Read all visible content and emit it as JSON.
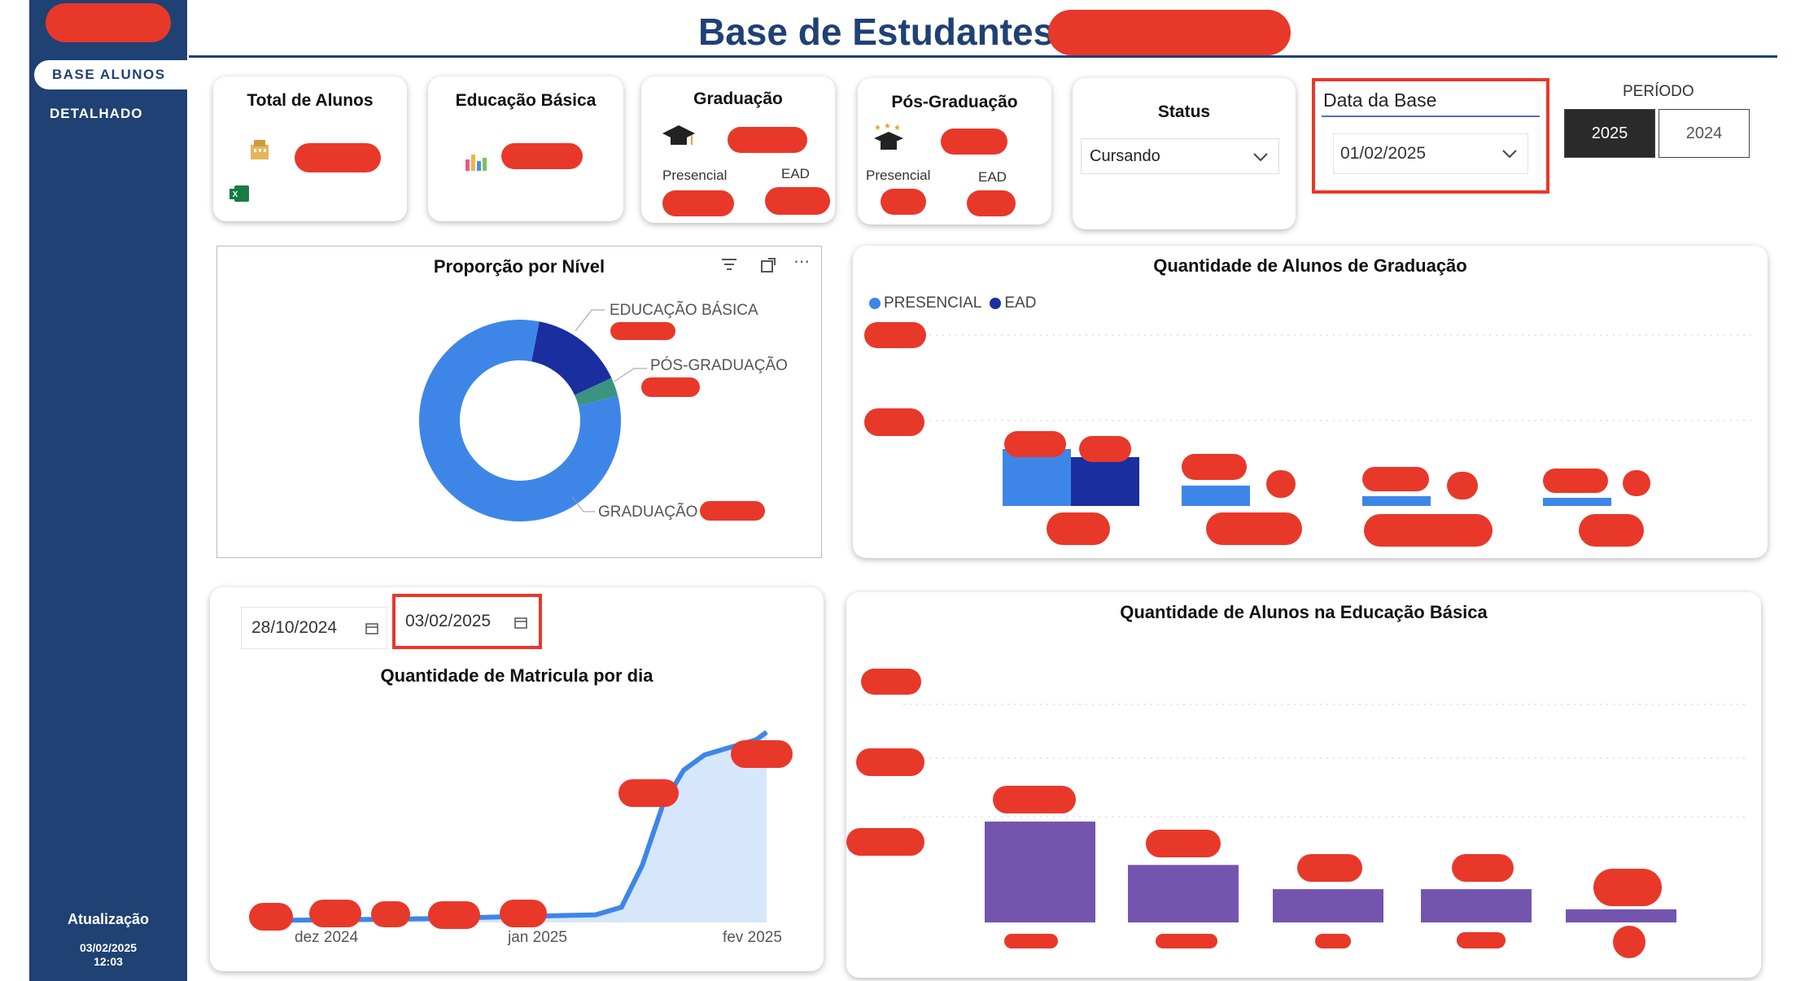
{
  "sidebar": {
    "nav": [
      {
        "label": "BASE ALUNOS",
        "active": true
      },
      {
        "label": "DETALHADO",
        "active": false
      }
    ],
    "update_label": "Atualização",
    "update_date": "03/02/2025",
    "update_time": "12:03"
  },
  "header": {
    "title": "Base de Estudantes"
  },
  "kpis": {
    "total_alunos": "Total de Alunos",
    "educacao_basica": "Educação Básica",
    "graduacao": "Graduação",
    "pos_graduacao": "Pós-Graduação",
    "presencial": "Presencial",
    "ead": "EAD"
  },
  "filters": {
    "status_label": "Status",
    "status_value": "Cursando",
    "date_label": "Data da Base",
    "date_value": "01/02/2025",
    "period_label": "PERÍODO",
    "period_options": [
      "2025",
      "2024"
    ],
    "period_selected": "2025",
    "range_start": "28/10/2024",
    "range_end": "03/02/2025"
  },
  "colors": {
    "sidebar": "#1f4173",
    "redaction": "#e8382a",
    "presencial": "#3d86e8",
    "ead": "#1a2ea0",
    "basica": "#7355b0",
    "pos": "#3a9480"
  },
  "chart_data": [
    {
      "type": "pie",
      "title": "Proporção por Nível",
      "labels": [
        "EDUCAÇÃO BÁSICA",
        "PÓS-GRADUAÇÃO",
        "GRADUAÇÃO"
      ],
      "values": [
        15,
        3,
        82
      ],
      "colors": [
        "#1a2ea0",
        "#3a9480",
        "#3d86e8"
      ]
    },
    {
      "type": "bar",
      "title": "Quantidade de Alunos de Graduação",
      "categories": [
        "",
        "",
        "",
        ""
      ],
      "series": [
        {
          "name": "PRESENCIAL",
          "values": [
            70,
            25,
            12,
            10
          ]
        },
        {
          "name": "EAD",
          "values": [
            60,
            0,
            0,
            0
          ]
        }
      ],
      "legend": "top-left"
    },
    {
      "type": "area",
      "title": "Quantidade de Matricula por dia",
      "x_ticks": [
        "dez 2024",
        "jan 2025",
        "fev 2025"
      ],
      "x": [
        "2024-10-28",
        "2024-11-15",
        "2024-12-01",
        "2024-12-15",
        "2025-01-01",
        "2025-01-06",
        "2025-01-10",
        "2025-01-14",
        "2025-01-18",
        "2025-01-22",
        "2025-01-27",
        "2025-02-01",
        "2025-02-03"
      ],
      "values": [
        1.0,
        1.5,
        2.0,
        3.0,
        4.0,
        8.0,
        30.0,
        62.0,
        80.0,
        88.0,
        92.0,
        96.0,
        100.0
      ]
    },
    {
      "type": "bar",
      "title": "Quantidade de Alunos na Educação Básica",
      "categories": [
        "",
        "",
        "",
        "",
        ""
      ],
      "values": [
        100,
        57,
        33,
        33,
        13
      ]
    }
  ]
}
